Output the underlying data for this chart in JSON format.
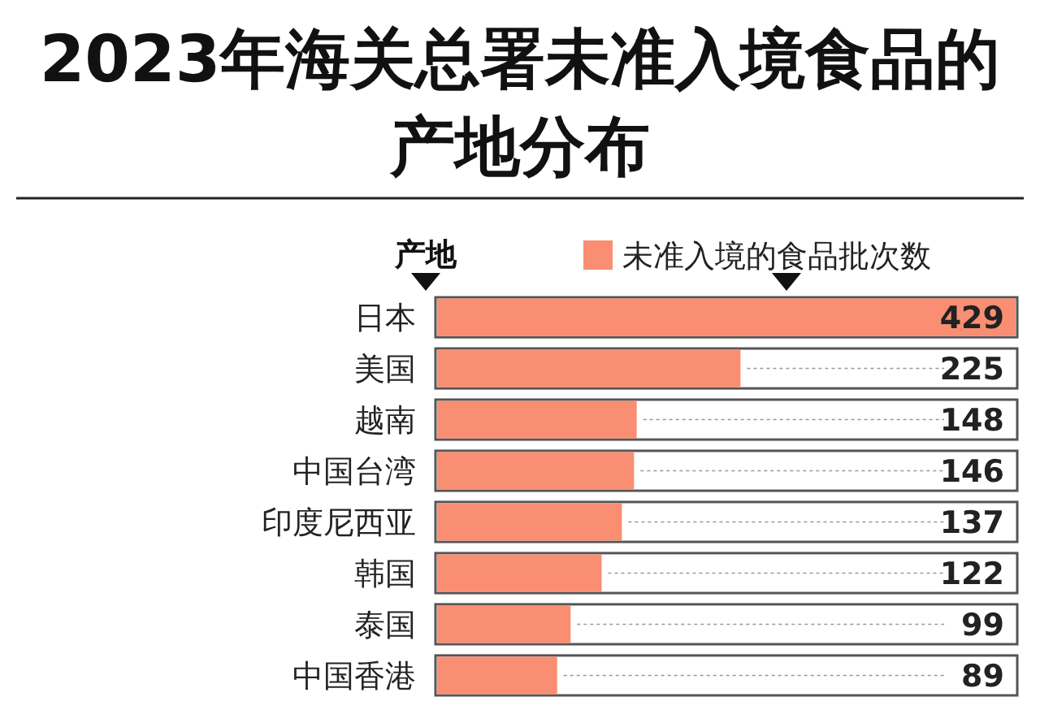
{
  "chart_data": {
    "type": "bar",
    "orientation": "horizontal",
    "title": "2023年海关总署未准入境食品的产地分布",
    "ylabel": "产地",
    "legend": "top",
    "data_labels": true,
    "categories": [
      "日本",
      "美国",
      "越南",
      "中国台湾",
      "印度尼西亚",
      "韩国",
      "泰国",
      "中国香港"
    ],
    "series": [
      {
        "name": "未准入境的食品批次数",
        "color": "#f98e72",
        "values": [
          429,
          225,
          148,
          146,
          137,
          122,
          99,
          89
        ]
      }
    ]
  }
}
